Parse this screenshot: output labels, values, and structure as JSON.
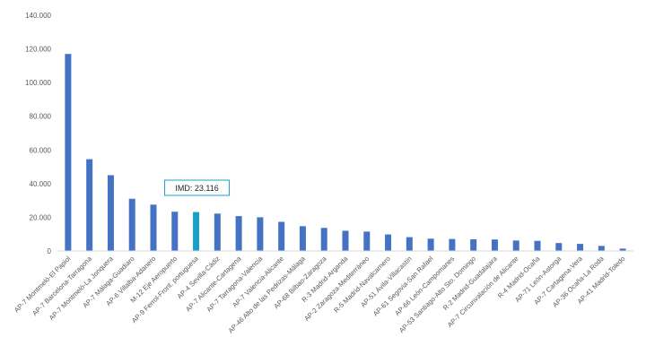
{
  "chart_data": {
    "type": "bar",
    "categories": [
      "AP-7 Montmeló-El Papiol",
      "AP-7 Barcelona-Tarragona",
      "AP-7 Montmeló-La Jonquera",
      "AP-7 Málaga-Guadiaro",
      "AP-6 Villalba-Adanero",
      "M-12 Eje Aeropuerto",
      "AP-9 Ferrol-Front. portuguesa",
      "AP-4 Sevilla-Cádiz",
      "AP-7 Alicante-Cartagena",
      "AP-7 Tarragona-Valencia",
      "AP-7 Valencia-Alicante",
      "AP-46 Alto de las Pedrizas-Málaga",
      "AP-68 Bilbao-Zaragoza",
      "R-3 Madrid-Arganda",
      "AP-2 Zaragoza-Mediterráneo",
      "R-5 Madrid-Navalcarnero",
      "AP-51 Ávila-Villacastín",
      "AP-61 Segovia-San Rafael",
      "AP-66 León-Campomanes",
      "AP-53 Santiago-Alto Sto. Domingo",
      "R-2 Madrid-Guadalajara",
      "AP-7 Circunvalación de Alicante",
      "R-4 Madrid-Ocaña",
      "AP-71 León-Astorga",
      "AP-7 Cartagena-Vera",
      "AP-36 Ocaña-La Roda",
      "AP-41 Madrid-Toledo"
    ],
    "values": [
      117000,
      54500,
      45000,
      31000,
      27500,
      23300,
      23116,
      22200,
      20700,
      20000,
      17300,
      14700,
      13700,
      12000,
      11500,
      9800,
      8200,
      7300,
      7100,
      6900,
      6800,
      6200,
      6000,
      4700,
      4200,
      3000,
      1400
    ],
    "highlight_index": 6,
    "ylim": [
      0,
      140000
    ],
    "yticks": [
      "0",
      "20.000",
      "40.000",
      "60.000",
      "80.000",
      "100.000",
      "120.000",
      "140.000"
    ],
    "ytick_values": [
      0,
      20000,
      40000,
      60000,
      80000,
      100000,
      120000,
      140000
    ],
    "grid": false,
    "legend": "none",
    "annotation": "IMD: 23.116",
    "colors": {
      "bar": "#4472c4",
      "highlight": "#1aa0c8",
      "axis": "#d9d9d9",
      "text": "#595959"
    }
  }
}
